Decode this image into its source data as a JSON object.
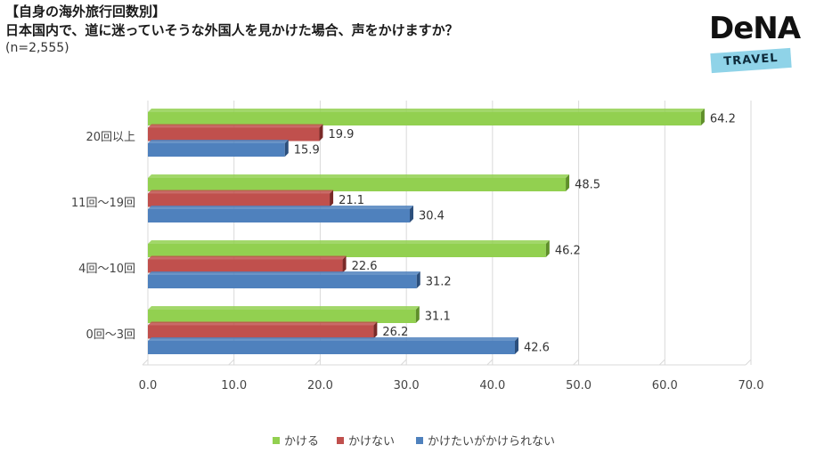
{
  "header": {
    "title": "【自身の海外旅行回数別】",
    "question": "日本国内で、道に迷っていそうな外国人を見かけた場合、声をかけますか？",
    "sample": "(n=2,555)"
  },
  "logo": {
    "name": "DeNA",
    "tag": "TRAVEL"
  },
  "colors": {
    "kakeru": "#92d050",
    "kakenai": "#c0504d",
    "kaketai": "#4f81bd"
  },
  "chart_data": {
    "type": "bar",
    "orientation": "horizontal",
    "categories": [
      "20回以上",
      "11回～19回",
      "4回～10回",
      "0回～3回"
    ],
    "series": [
      {
        "name": "かける",
        "values": [
          64.2,
          48.5,
          46.2,
          31.1
        ]
      },
      {
        "name": "かけない",
        "values": [
          19.9,
          21.1,
          22.6,
          26.2
        ]
      },
      {
        "name": "かけたいがかけられない",
        "values": [
          15.9,
          30.4,
          31.2,
          42.6
        ]
      }
    ],
    "xlim": [
      0,
      70
    ],
    "ticks": [
      "0.0",
      "10.0",
      "20.0",
      "30.0",
      "40.0",
      "50.0",
      "60.0",
      "70.0"
    ],
    "legend_position": "bottom"
  }
}
